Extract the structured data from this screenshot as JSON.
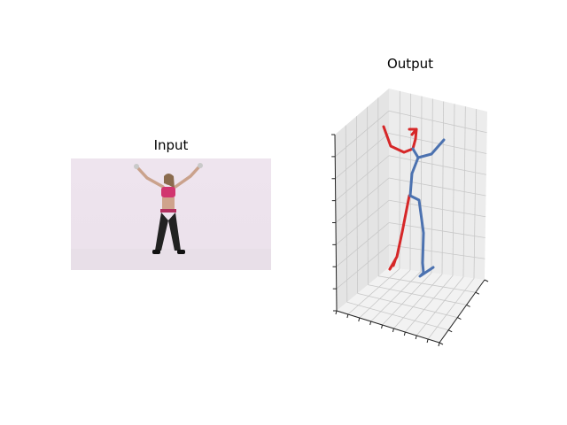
{
  "figure": {
    "input_title": "Input",
    "output_title": "Output"
  },
  "colors": {
    "background": "#ffffff",
    "left_limb": "#d62728",
    "right_limb": "#4c72b0",
    "pane": "#f2f2f2",
    "grid": "#c8c8c8",
    "photo_backdrop": "#ece2ec"
  },
  "chart_data": {
    "type": "diagram",
    "kind": "3d-pose-skeleton",
    "grid": true,
    "series": [
      {
        "color": "#d62728"
      },
      {
        "color": "#4c72b0"
      }
    ]
  }
}
